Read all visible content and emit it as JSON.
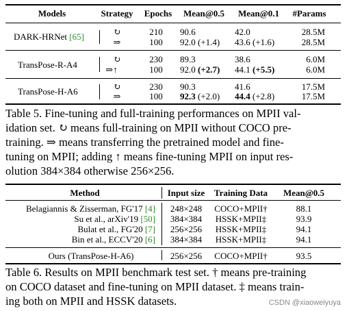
{
  "table5": {
    "headers": {
      "models": "Models",
      "strategy": "Strategy",
      "epochs": "Epochs",
      "mean05": "Mean@0.5",
      "mean01": "Mean@0.1",
      "params": "#Params"
    },
    "groups": [
      {
        "model": "DARK-HRNet",
        "cite": "[65]",
        "rows": [
          {
            "strategy": "↻",
            "epochs": "210",
            "mean05": "90.6",
            "mean05_delta": "",
            "mean01": "42.0",
            "mean01_delta": "",
            "params": "28.5M"
          },
          {
            "strategy": "⇒",
            "epochs": "100",
            "mean05": "92.0",
            "mean05_delta": "(+1.4)",
            "mean01": "43.6",
            "mean01_delta": "(+1.6)",
            "params": "28.5M"
          }
        ]
      },
      {
        "model": "TransPose-R-A4",
        "cite": "",
        "rows": [
          {
            "strategy": "↻",
            "epochs": "230",
            "mean05": "89.3",
            "mean05_delta": "",
            "mean01": "38.6",
            "mean01_delta": "",
            "params": "6.0M"
          },
          {
            "strategy": "⇒↑",
            "epochs": "100",
            "mean05": "92.0",
            "mean05_delta": "(+2.7)",
            "mean01": "44.1",
            "mean01_delta": "(+5.5)",
            "params": "6.0M"
          }
        ]
      },
      {
        "model": "TransPose-H-A6",
        "cite": "",
        "rows": [
          {
            "strategy": "↻",
            "epochs": "230",
            "mean05": "90.3",
            "mean05_delta": "",
            "mean01": "41.6",
            "mean01_delta": "",
            "params": "17.5M"
          },
          {
            "strategy": "⇒",
            "epochs": "100",
            "mean05": "92.3",
            "mean05_delta": "(+2.0)",
            "mean01": "44.4",
            "mean01_delta": "(+2.8)",
            "params": "17.5M"
          }
        ]
      }
    ],
    "caption_lines": [
      "Table 5. Fine-tuning and full-training performances on MPII val-",
      "idation set. ↻ means full-training on MPII without COCO pre-",
      "training. ⇒ means transferring the pretrained model and fine-",
      "tuning on MPII; adding ↑ means fine-tuning MPII on input res-",
      "olution 384×384 otherwise 256×256."
    ]
  },
  "table6": {
    "headers": {
      "method": "Method",
      "input": "Input size",
      "training": "Training Data",
      "mean05": "Mean@0.5"
    },
    "rows": [
      {
        "method": "Belagiannis & Zisserman, FG'17",
        "cite": "[4]",
        "input": "248×248",
        "training": "COCO+MPII†",
        "mean": "88.1"
      },
      {
        "method": "Su et al., arXiv'19",
        "cite": "[50]",
        "input": "384×384",
        "training": "HSSK+MPII‡",
        "mean": "93.9"
      },
      {
        "method": "Bulat et al., FG'20",
        "cite": "[7]",
        "input": "256×256",
        "training": "HSSK+MPII‡",
        "mean": "94.1"
      },
      {
        "method": "Bin et al., ECCV'20",
        "cite": "[6]",
        "input": "384×384",
        "training": "HSSK+MPII‡",
        "mean": "94.1"
      }
    ],
    "ours": {
      "method": "Ours (TransPose-H-A6)",
      "input": "256×256",
      "training": "COCO+MPII†",
      "mean": "93.5"
    },
    "caption_lines": [
      "Table 6. Results on MPII benchmark test set. † means pre-training",
      "on COCO dataset and fine-tuning on MPII dataset. ‡ means train-",
      "ing both on MPII and HSSK datasets."
    ]
  },
  "watermark": "CSDN @xiaoweiyuya"
}
